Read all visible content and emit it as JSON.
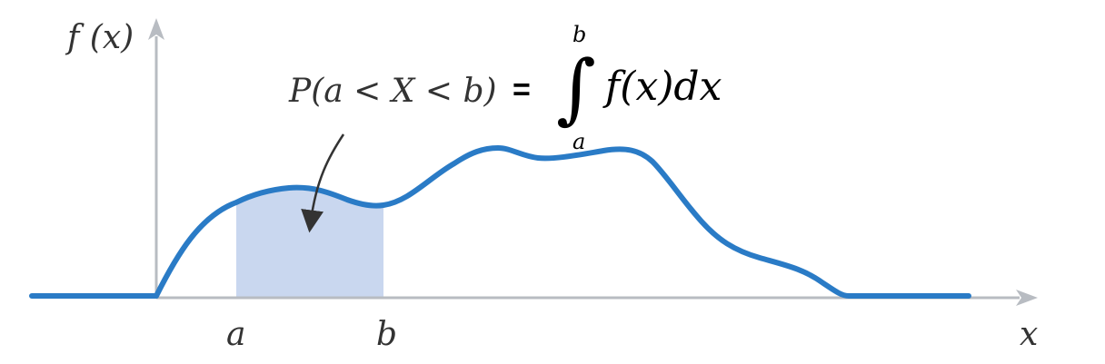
{
  "axes": {
    "y_label": "f (x)",
    "x_label": "x",
    "axis_color": "#b8bcc2"
  },
  "interval": {
    "a_label": "a",
    "b_label": "b",
    "shade_color": "#c9d7ef"
  },
  "curve": {
    "color": "#2a7bc6"
  },
  "formula": {
    "probability": "P(a < X < b)",
    "equals": "=",
    "integral_sign": "∫",
    "upper_limit": "b",
    "lower_limit": "a",
    "integrand": "f(x)dx"
  }
}
